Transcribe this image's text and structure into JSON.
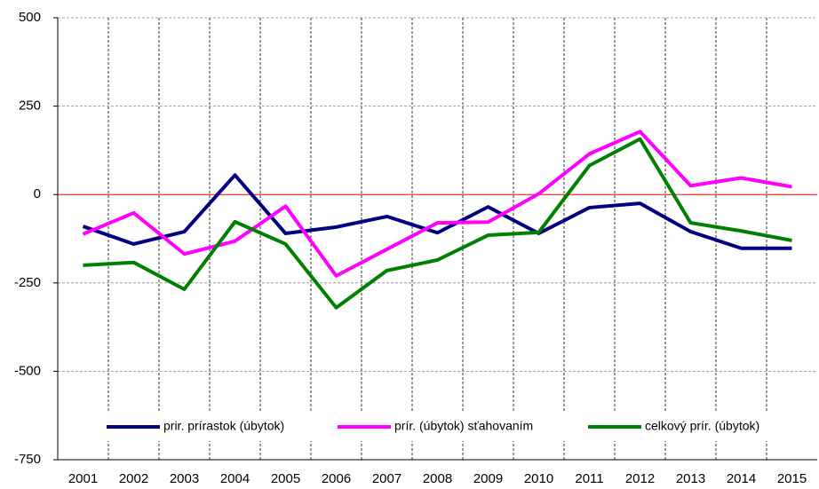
{
  "chart_data": {
    "type": "line",
    "categories": [
      "2001",
      "2002",
      "2003",
      "2004",
      "2005",
      "2006",
      "2007",
      "2008",
      "2009",
      "2010",
      "2011",
      "2012",
      "2013",
      "2014",
      "2015"
    ],
    "series": [
      {
        "name": "prir. prírastok (úbytok)",
        "color": "#000080",
        "values": [
          -90,
          -140,
          -105,
          55,
          -110,
          -92,
          -62,
          -108,
          -35,
          -110,
          -37,
          -25,
          -105,
          -152,
          -152
        ]
      },
      {
        "name": "prír. (úbytok) sťahovaním",
        "color": "#ff00ff",
        "values": [
          -112,
          -52,
          -168,
          -132,
          -33,
          -230,
          -155,
          -80,
          -78,
          2,
          115,
          178,
          25,
          47,
          22
        ]
      },
      {
        "name": "celkový prír. (úbytok)",
        "color": "#008000",
        "values": [
          -200,
          -192,
          -268,
          -77,
          -140,
          -320,
          -215,
          -185,
          -115,
          -107,
          82,
          157,
          -80,
          -103,
          -130
        ]
      }
    ],
    "ylim": [
      -750,
      500
    ],
    "yticks": [
      500,
      250,
      0,
      -250,
      -500,
      -750
    ],
    "grid": true,
    "zero_line_color": "#ff0000",
    "legend": "bottom"
  }
}
